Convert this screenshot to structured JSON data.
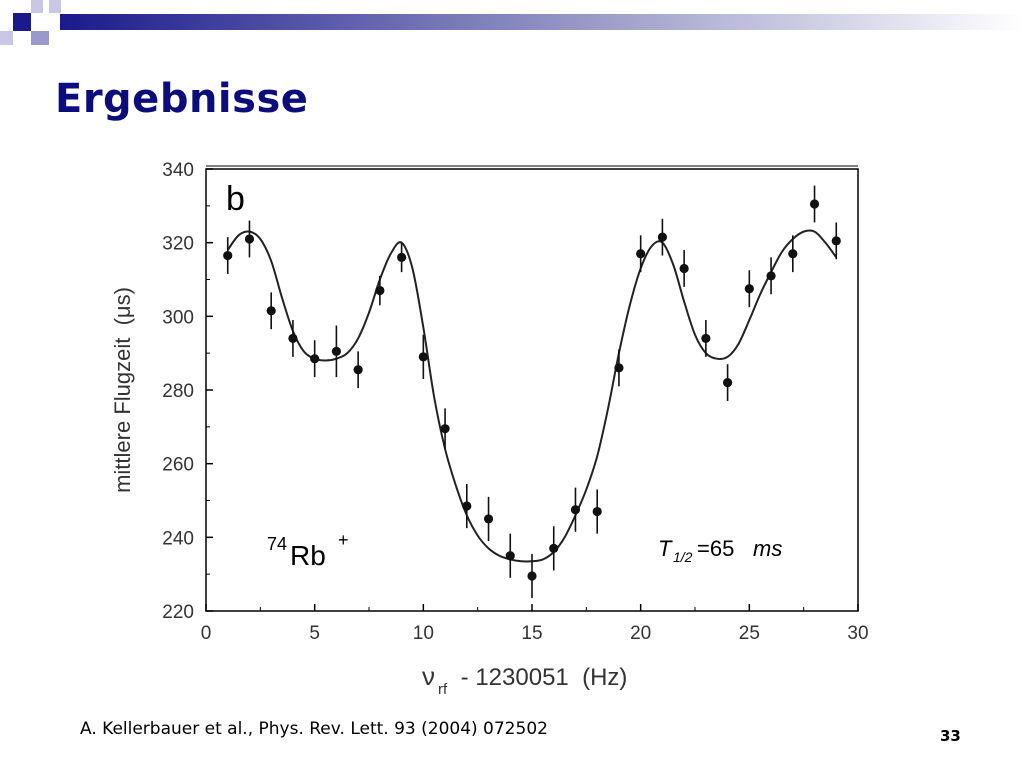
{
  "slide": {
    "title": "Ergebnisse",
    "citation": "A. Kellerbauer et al., Phys. Rev. Lett. 93 (2004) 072502",
    "page_number": "33",
    "colors": {
      "title": "#0c0c7c",
      "accent_dark": "#1a1a8c",
      "accent_light": "#9999cc"
    }
  },
  "chart_data": {
    "type": "scatter",
    "panel_label": "b",
    "xlim": [
      0,
      30
    ],
    "ylim": [
      220,
      340
    ],
    "x_ticks": [
      0,
      5,
      10,
      15,
      20,
      25,
      30
    ],
    "y_ticks": [
      220,
      240,
      260,
      280,
      300,
      320,
      340
    ],
    "xlabel": {
      "symbol": "ν",
      "subscript": "rf",
      "rest": " - 1230051  (Hz)"
    },
    "ylabel": "mittlere Flugzeit  (μs)",
    "annotations": {
      "isotope": {
        "mass": "74",
        "element": "Rb",
        "charge": "+"
      },
      "halflife": {
        "symbol": "T",
        "subscript": "1/2",
        "value": "=65",
        "unit": "ms"
      }
    },
    "series": [
      {
        "kind": "points_with_error",
        "points": [
          {
            "x": 1,
            "y": 316.5,
            "err": 5
          },
          {
            "x": 2,
            "y": 321,
            "err": 5
          },
          {
            "x": 3,
            "y": 301.5,
            "err": 5
          },
          {
            "x": 4,
            "y": 294,
            "err": 5
          },
          {
            "x": 5,
            "y": 288.5,
            "err": 5
          },
          {
            "x": 6,
            "y": 290.5,
            "err": 7
          },
          {
            "x": 7,
            "y": 285.5,
            "err": 5
          },
          {
            "x": 8,
            "y": 307,
            "err": 4
          },
          {
            "x": 9,
            "y": 316,
            "err": 4
          },
          {
            "x": 10,
            "y": 289,
            "err": 6
          },
          {
            "x": 11,
            "y": 269.5,
            "err": 5.5
          },
          {
            "x": 12,
            "y": 248.5,
            "err": 6
          },
          {
            "x": 13,
            "y": 245,
            "err": 6
          },
          {
            "x": 14,
            "y": 235,
            "err": 6
          },
          {
            "x": 15,
            "y": 229.5,
            "err": 6
          },
          {
            "x": 16,
            "y": 237,
            "err": 6
          },
          {
            "x": 17,
            "y": 247.5,
            "err": 6
          },
          {
            "x": 18,
            "y": 247,
            "err": 6
          },
          {
            "x": 19,
            "y": 286,
            "err": 5
          },
          {
            "x": 20,
            "y": 317,
            "err": 5
          },
          {
            "x": 21,
            "y": 321.5,
            "err": 5
          },
          {
            "x": 22,
            "y": 313,
            "err": 5
          },
          {
            "x": 23,
            "y": 294,
            "err": 5
          },
          {
            "x": 24,
            "y": 282,
            "err": 5
          },
          {
            "x": 25,
            "y": 307.5,
            "err": 5
          },
          {
            "x": 26,
            "y": 311,
            "err": 5
          },
          {
            "x": 27,
            "y": 317,
            "err": 5
          },
          {
            "x": 28,
            "y": 330.5,
            "err": 5
          },
          {
            "x": 29,
            "y": 320.5,
            "err": 5
          }
        ]
      },
      {
        "kind": "fit_line",
        "points": [
          [
            1,
            318
          ],
          [
            1.5,
            322
          ],
          [
            2,
            323
          ],
          [
            2.5,
            321
          ],
          [
            3,
            315
          ],
          [
            3.5,
            305
          ],
          [
            4,
            296
          ],
          [
            4.5,
            290.5
          ],
          [
            5,
            288.5
          ],
          [
            5.5,
            288
          ],
          [
            6,
            288.5
          ],
          [
            6.5,
            290
          ],
          [
            7,
            294
          ],
          [
            7.5,
            301
          ],
          [
            8,
            310
          ],
          [
            8.5,
            317
          ],
          [
            9,
            320
          ],
          [
            9.5,
            313
          ],
          [
            10,
            297
          ],
          [
            10.5,
            278
          ],
          [
            11,
            264
          ],
          [
            11.5,
            254
          ],
          [
            12,
            246
          ],
          [
            12.5,
            240.5
          ],
          [
            13,
            237
          ],
          [
            13.5,
            235
          ],
          [
            14,
            234
          ],
          [
            14.5,
            233.5
          ],
          [
            15,
            233.5
          ],
          [
            15.5,
            234
          ],
          [
            16,
            236
          ],
          [
            16.5,
            240
          ],
          [
            17,
            246
          ],
          [
            17.5,
            253
          ],
          [
            18,
            262
          ],
          [
            18.5,
            275
          ],
          [
            19,
            290
          ],
          [
            19.5,
            303
          ],
          [
            20,
            313
          ],
          [
            20.5,
            319
          ],
          [
            21,
            320
          ],
          [
            21.5,
            314
          ],
          [
            22,
            304
          ],
          [
            22.5,
            295
          ],
          [
            23,
            290
          ],
          [
            23.5,
            288.5
          ],
          [
            24,
            289
          ],
          [
            24.5,
            292.5
          ],
          [
            25,
            299
          ],
          [
            25.5,
            306
          ],
          [
            26,
            312
          ],
          [
            26.5,
            317.5
          ],
          [
            27,
            321
          ],
          [
            27.5,
            323
          ],
          [
            28,
            323
          ],
          [
            28.5,
            320
          ],
          [
            29,
            316
          ]
        ]
      }
    ]
  }
}
